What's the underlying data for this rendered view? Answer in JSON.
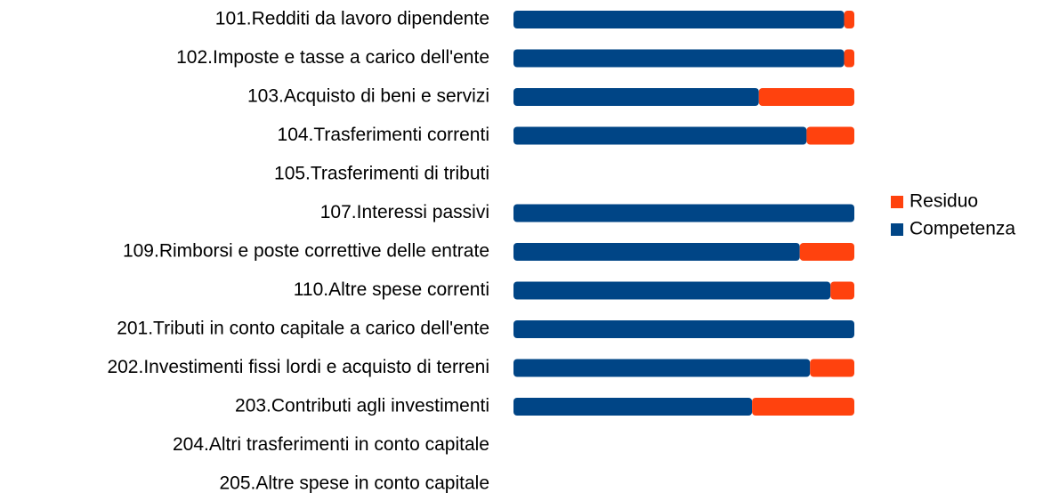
{
  "chart_data": {
    "type": "stacked-bar-horizontal-percent",
    "categories": [
      "101.Redditi da lavoro dipendente",
      "102.Imposte e tasse a carico dell'ente",
      "103.Acquisto di beni e servizi",
      "104.Trasferimenti correnti",
      "105.Trasferimenti di tributi",
      "107.Interessi passivi",
      "109.Rimborsi e poste correttive delle entrate",
      "110.Altre spese correnti",
      "201.Tributi in conto capitale a carico dell'ente",
      "202.Investimenti fissi lordi e acquisto di terreni",
      "203.Contributi agli investimenti",
      "204.Altri trasferimenti in conto capitale",
      "205.Altre spese in conto capitale"
    ],
    "series": [
      {
        "name": "Competenza",
        "color": "#004586",
        "values": [
          97,
          97,
          72,
          86,
          null,
          100,
          84,
          93,
          100,
          87,
          70,
          null,
          null
        ]
      },
      {
        "name": "Residuo",
        "color": "#ff420e",
        "values": [
          3,
          3,
          28,
          14,
          null,
          0,
          16,
          7,
          0,
          13,
          30,
          null,
          null
        ]
      }
    ],
    "legend": "right"
  }
}
